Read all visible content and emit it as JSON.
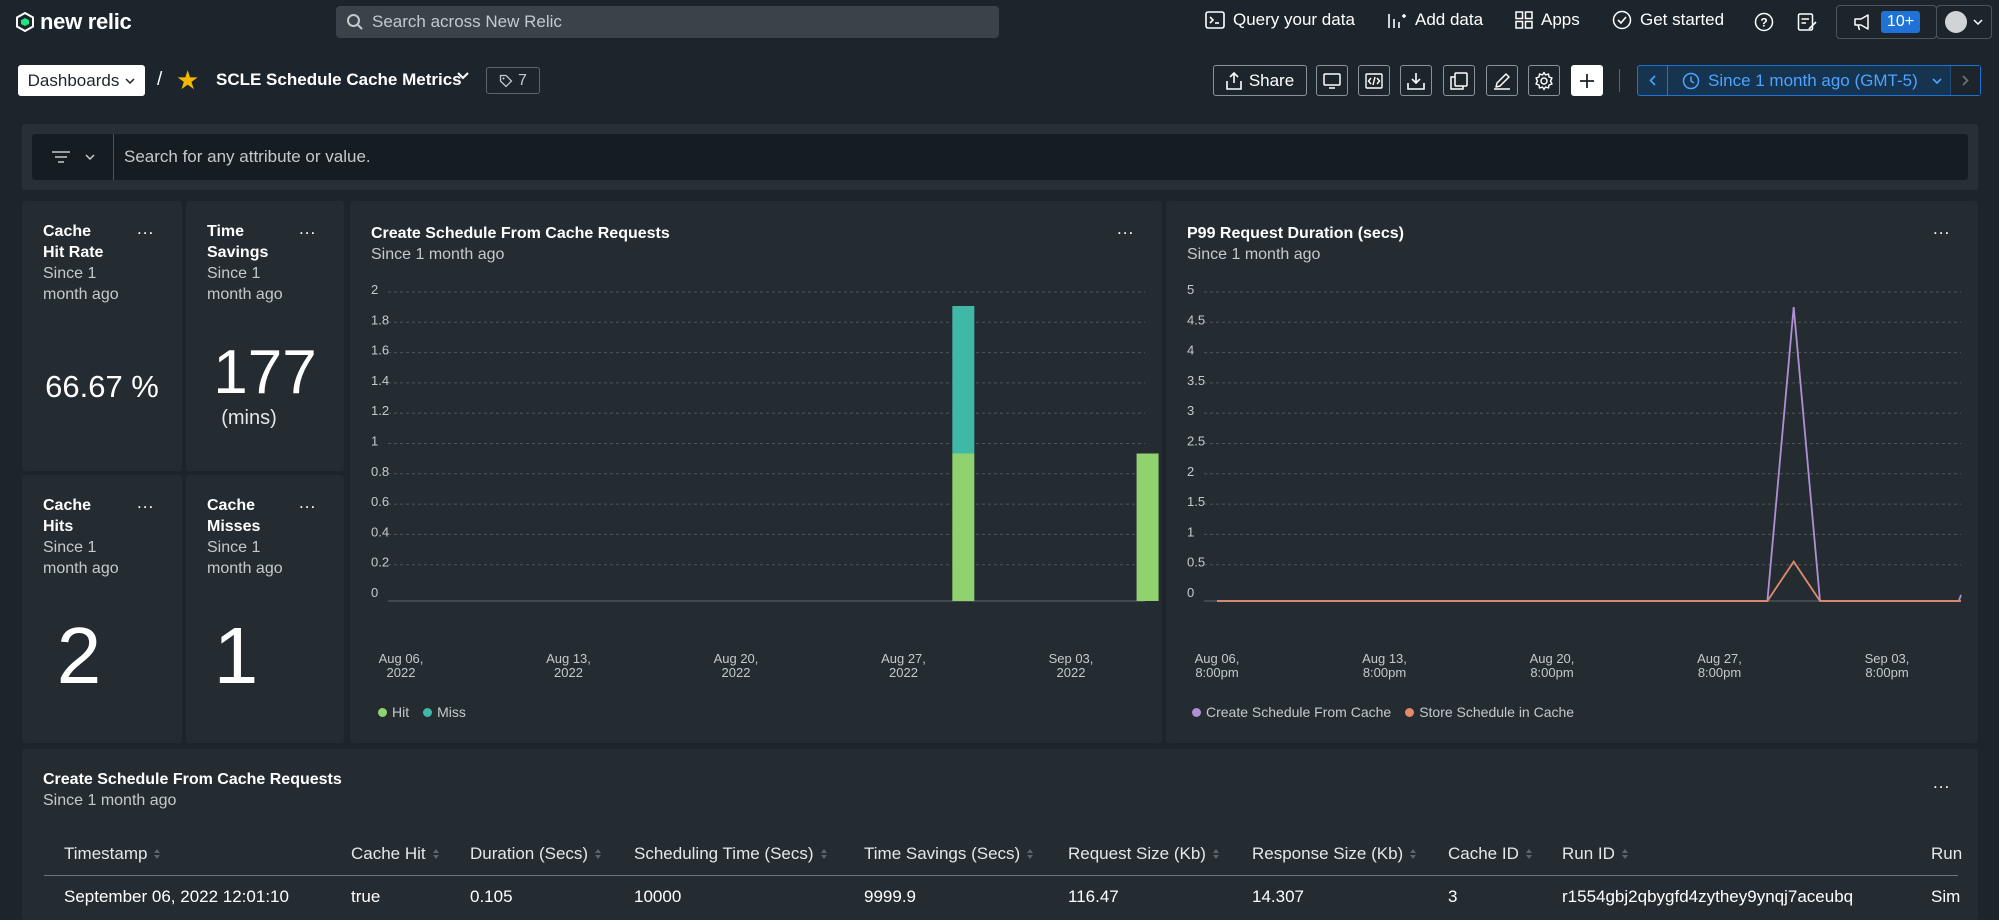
{
  "topnav": {
    "brand": "new relic",
    "search_placeholder": "Search across New Relic",
    "query_label": "Query your data",
    "add_data_label": "Add data",
    "apps_label": "Apps",
    "get_started_label": "Get started",
    "announcements_badge": "10+"
  },
  "header": {
    "dashboards_label": "Dashboards",
    "separator": "/",
    "title": "SCLE Schedule Cache Metrics",
    "tag_count": "7",
    "share_label": "Share",
    "time_range": "Since 1 month ago (GMT-5)"
  },
  "filter": {
    "placeholder": "Search for any attribute or value."
  },
  "widgets": {
    "cache_hit_rate": {
      "title_line1": "Cache",
      "title_line2": "Hit Rate",
      "sub_line1": "Since 1",
      "sub_line2": "month ago",
      "value": "66.67 %"
    },
    "time_savings": {
      "title_line1": "Time",
      "title_line2": "Savings",
      "sub_line1": "Since 1",
      "sub_line2": "month ago",
      "value": "177",
      "unit": "(mins)"
    },
    "cache_hits": {
      "title_line1": "Cache",
      "title_line2": "Hits",
      "sub_line1": "Since 1",
      "sub_line2": "month ago",
      "value": "2"
    },
    "cache_misses": {
      "title_line1": "Cache",
      "title_line2": "Misses",
      "sub_line1": "Since 1",
      "sub_line2": "month ago",
      "value": "1"
    },
    "bar_chart": {
      "title": "Create Schedule From Cache Requests",
      "subtitle": "Since 1 month ago"
    },
    "line_chart": {
      "title": "P99 Request Duration (secs)",
      "subtitle": "Since 1 month ago"
    },
    "table": {
      "title": "Create Schedule From Cache Requests",
      "subtitle": "Since 1 month ago"
    },
    "menu": "..."
  },
  "chart_data": [
    {
      "type": "bar",
      "title": "Create Schedule From Cache Requests",
      "ylim": [
        0,
        2
      ],
      "yticks": [
        "0",
        "0.2",
        "0.4",
        "0.6",
        "0.8",
        "1",
        "1.2",
        "1.4",
        "1.6",
        "1.8",
        "2"
      ],
      "xticks": [
        [
          "Aug 06,",
          "2022"
        ],
        [
          "Aug 13,",
          "2022"
        ],
        [
          "Aug 20,",
          "2022"
        ],
        [
          "Aug 27,",
          "2022"
        ],
        [
          "Sep 03,",
          "2022"
        ]
      ],
      "x_range_days": [
        0,
        32
      ],
      "bars": [
        {
          "day": 23.5,
          "hit": 1,
          "miss": 1
        },
        {
          "day": 31.2,
          "hit": 1,
          "miss": 0
        }
      ],
      "series": [
        {
          "name": "Hit",
          "color": "#8fd26e"
        },
        {
          "name": "Miss",
          "color": "#3fb8a8"
        }
      ],
      "grid": true,
      "legend": "bottom-left"
    },
    {
      "type": "line",
      "title": "P99 Request Duration (secs)",
      "ylim": [
        0,
        5
      ],
      "yticks": [
        "0",
        "0.5",
        "1",
        "1.5",
        "2",
        "2.5",
        "3",
        "3.5",
        "4",
        "4.5",
        "5"
      ],
      "xticks": [
        [
          "Aug 06,",
          "8:00pm"
        ],
        [
          "Aug 13,",
          "8:00pm"
        ],
        [
          "Aug 20,",
          "8:00pm"
        ],
        [
          "Aug 27,",
          "8:00pm"
        ],
        [
          "Sep 03,",
          "8:00pm"
        ]
      ],
      "x_range_days": [
        0,
        32
      ],
      "series": [
        {
          "name": "Create Schedule From Cache",
          "color": "#b08fd4",
          "points": [
            [
              0,
              0
            ],
            [
              23.0,
              0
            ],
            [
              24.1,
              4.85
            ],
            [
              25.2,
              0
            ],
            [
              31.0,
              0
            ],
            [
              32,
              0.1
            ]
          ]
        },
        {
          "name": "Store Schedule in Cache",
          "color": "#e08a6a",
          "points": [
            [
              0,
              0
            ],
            [
              23.0,
              0
            ],
            [
              24.1,
              0.65
            ],
            [
              25.2,
              0
            ],
            [
              32,
              0
            ]
          ]
        }
      ],
      "grid": true,
      "legend": "bottom-left"
    }
  ],
  "table": {
    "columns": [
      "Timestamp",
      "Cache Hit",
      "Duration (Secs)",
      "Scheduling Time (Secs)",
      "Time Savings (Secs)",
      "Request Size (Kb)",
      "Response Size (Kb)",
      "Cache ID",
      "Run ID",
      "Run"
    ],
    "row": [
      "September 06, 2022 12:01:10",
      "true",
      "0.105",
      "10000",
      "9999.9",
      "116.47",
      "14.307",
      "3",
      "r1554gbj2qbygfd4zythey9ynqj7aceubq",
      "Sim"
    ]
  }
}
